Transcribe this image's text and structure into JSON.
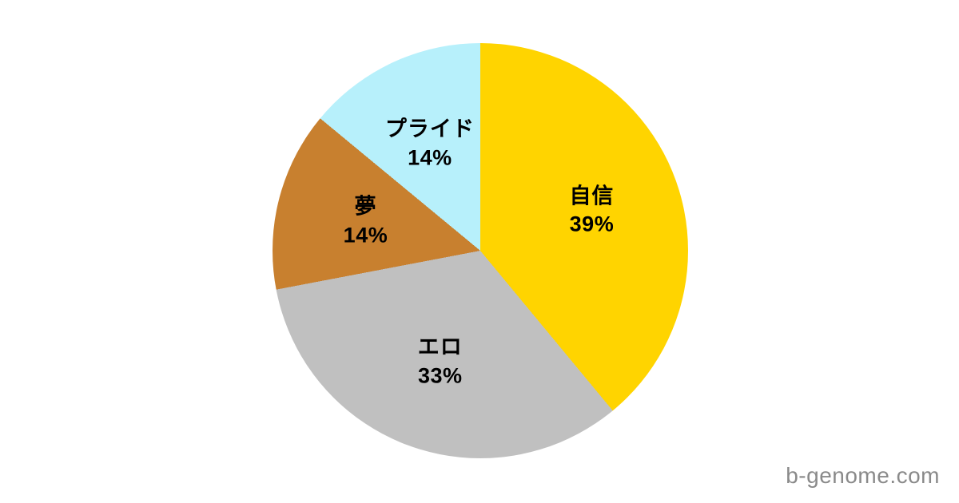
{
  "chart_data": {
    "type": "pie",
    "title": "",
    "start_angle_deg": 0,
    "direction": "clockwise",
    "legend_position": "none",
    "labels": "inside",
    "segments": [
      {
        "label": "自信",
        "value": 39,
        "display": "39%",
        "color": "#FFD400"
      },
      {
        "label": "エロ",
        "value": 33,
        "display": "33%",
        "color": "#C0C0C0"
      },
      {
        "label": "夢",
        "value": 14,
        "display": "14%",
        "color": "#C8802F"
      },
      {
        "label": "プライド",
        "value": 14,
        "display": "14%",
        "color": "#B7F0FB"
      }
    ]
  },
  "watermark": {
    "text": "b-genome.com",
    "color": "#8a8a8a"
  },
  "canvas": {
    "background": "#FFFFFF"
  }
}
